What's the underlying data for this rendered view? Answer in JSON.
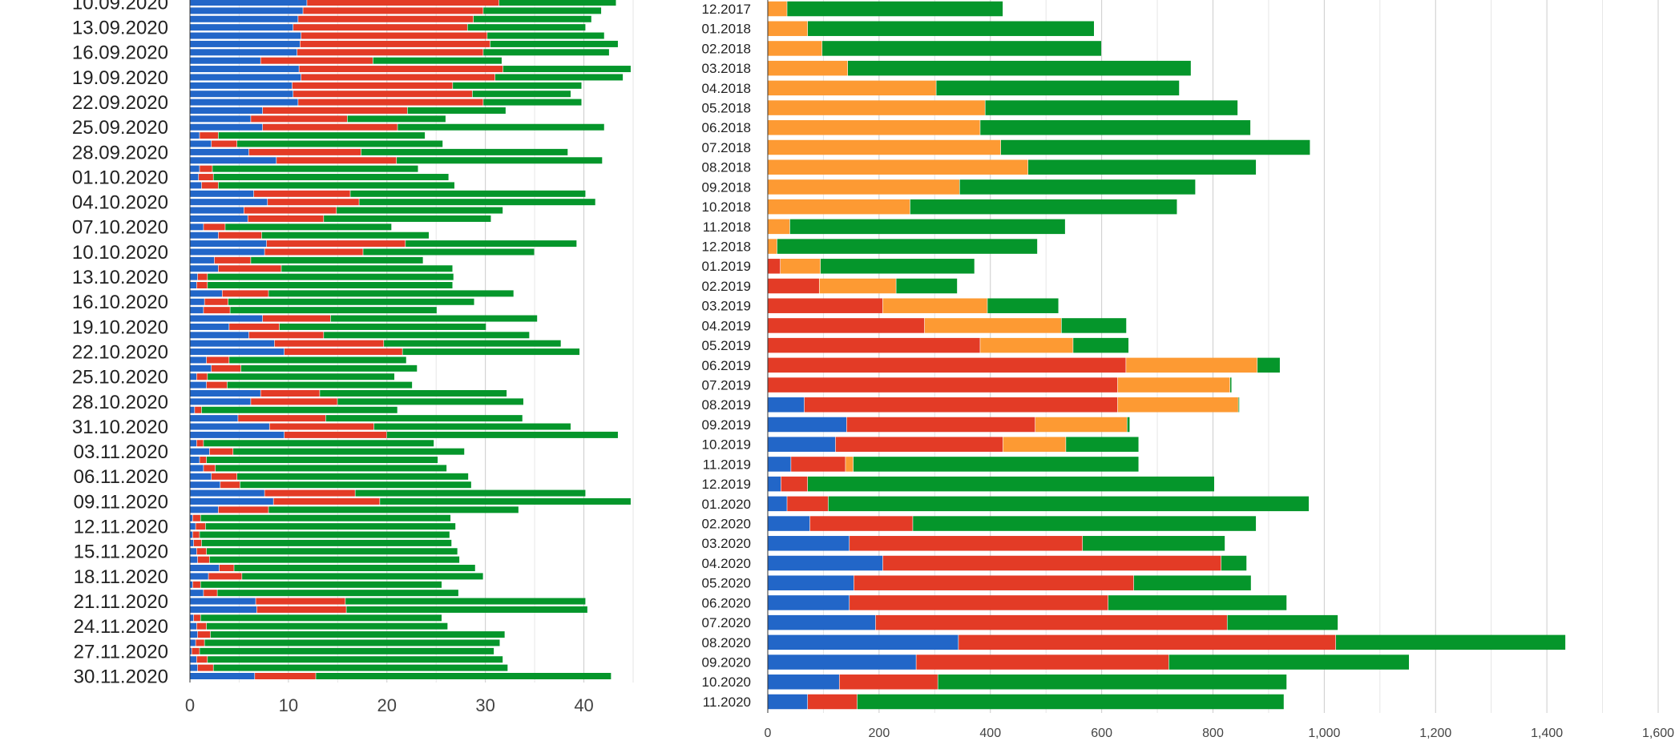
{
  "colors": {
    "blue": "#2266c8",
    "red": "#e33b26",
    "orange": "#fd9a33",
    "green": "#05962b"
  },
  "chart_data": [
    {
      "type": "bar",
      "orientation": "horizontal",
      "stacked": true,
      "title": "",
      "xlabel": "",
      "ylabel": "",
      "xlim": [
        0,
        45
      ],
      "xticks": [
        "0",
        "10",
        "20",
        "30",
        "40"
      ],
      "series_names": [
        "blue",
        "red",
        "green"
      ],
      "rows": [
        {
          "label": "10.09.2020",
          "values": [
            11.9,
            19.5,
            11.9
          ]
        },
        {
          "label": "",
          "values": [
            11.5,
            18.3,
            12.0
          ]
        },
        {
          "label": "",
          "values": [
            11.0,
            17.8,
            12.0
          ]
        },
        {
          "label": "13.09.2020",
          "values": [
            10.5,
            17.7,
            12.0
          ]
        },
        {
          "label": "",
          "values": [
            11.3,
            18.9,
            11.9
          ]
        },
        {
          "label": "",
          "values": [
            11.2,
            19.3,
            13.0
          ]
        },
        {
          "label": "16.09.2020",
          "values": [
            10.9,
            18.9,
            12.8
          ]
        },
        {
          "label": "",
          "values": [
            7.2,
            11.4,
            13.1
          ]
        },
        {
          "label": "",
          "values": [
            11.1,
            20.7,
            13.0
          ]
        },
        {
          "label": "19.09.2020",
          "values": [
            11.3,
            19.7,
            13.0
          ]
        },
        {
          "label": "",
          "values": [
            10.4,
            16.3,
            13.1
          ]
        },
        {
          "label": "",
          "values": [
            10.5,
            18.2,
            10.0
          ]
        },
        {
          "label": "22.09.2020",
          "values": [
            11.0,
            18.8,
            10.0
          ]
        },
        {
          "label": "",
          "values": [
            7.4,
            14.7,
            10.0
          ]
        },
        {
          "label": "",
          "values": [
            6.2,
            9.8,
            10.0
          ]
        },
        {
          "label": "25.09.2020",
          "values": [
            7.4,
            13.7,
            21.0
          ]
        },
        {
          "label": "",
          "values": [
            1.0,
            1.9,
            21.0
          ]
        },
        {
          "label": "",
          "values": [
            2.2,
            2.6,
            20.9
          ]
        },
        {
          "label": "28.09.2020",
          "values": [
            6.0,
            11.4,
            21.0
          ]
        },
        {
          "label": "",
          "values": [
            8.8,
            12.2,
            20.9
          ]
        },
        {
          "label": "",
          "values": [
            1.0,
            1.3,
            20.9
          ]
        },
        {
          "label": "01.10.2020",
          "values": [
            0.9,
            1.5,
            23.9
          ]
        },
        {
          "label": "",
          "values": [
            1.2,
            1.7,
            24.0
          ]
        },
        {
          "label": "",
          "values": [
            6.5,
            9.8,
            23.9
          ]
        },
        {
          "label": "04.10.2020",
          "values": [
            7.9,
            9.3,
            24.0
          ]
        },
        {
          "label": "",
          "values": [
            5.5,
            9.4,
            16.9
          ]
        },
        {
          "label": "",
          "values": [
            5.9,
            7.7,
            17.0
          ]
        },
        {
          "label": "07.10.2020",
          "values": [
            1.4,
            2.2,
            16.9
          ]
        },
        {
          "label": "",
          "values": [
            2.9,
            4.4,
            17.0
          ]
        },
        {
          "label": "",
          "values": [
            7.8,
            14.1,
            17.4
          ]
        },
        {
          "label": "10.10.2020",
          "values": [
            7.6,
            10.0,
            17.4
          ]
        },
        {
          "label": "",
          "values": [
            2.5,
            3.7,
            17.5
          ]
        },
        {
          "label": "",
          "values": [
            2.9,
            6.4,
            17.4
          ]
        },
        {
          "label": "13.10.2020",
          "values": [
            0.8,
            1.0,
            25.0
          ]
        },
        {
          "label": "",
          "values": [
            0.7,
            1.1,
            24.9
          ]
        },
        {
          "label": "",
          "values": [
            3.3,
            4.7,
            24.9
          ]
        },
        {
          "label": "16.10.2020",
          "values": [
            1.5,
            2.4,
            25.0
          ]
        },
        {
          "label": "",
          "values": [
            1.4,
            2.7,
            21.0
          ]
        },
        {
          "label": "",
          "values": [
            7.4,
            6.9,
            21.0
          ]
        },
        {
          "label": "19.10.2020",
          "values": [
            4.0,
            5.1,
            21.0
          ]
        },
        {
          "label": "",
          "values": [
            6.0,
            7.6,
            20.9
          ]
        },
        {
          "label": "",
          "values": [
            8.6,
            11.1,
            18.0
          ]
        },
        {
          "label": "22.10.2020",
          "values": [
            9.6,
            12.0,
            18.0
          ]
        },
        {
          "label": "",
          "values": [
            1.7,
            2.3,
            18.0
          ]
        },
        {
          "label": "",
          "values": [
            2.2,
            3.0,
            17.9
          ]
        },
        {
          "label": "25.10.2020",
          "values": [
            0.7,
            1.1,
            19.0
          ]
        },
        {
          "label": "",
          "values": [
            1.7,
            2.1,
            18.8
          ]
        },
        {
          "label": "",
          "values": [
            7.2,
            6.0,
            19.0
          ]
        },
        {
          "label": "28.10.2020",
          "values": [
            6.2,
            8.8,
            18.9
          ]
        },
        {
          "label": "",
          "values": [
            0.5,
            0.7,
            19.9
          ]
        },
        {
          "label": "",
          "values": [
            4.9,
            8.9,
            20.0
          ]
        },
        {
          "label": "31.10.2020",
          "values": [
            8.1,
            10.6,
            20.0
          ]
        },
        {
          "label": "",
          "values": [
            9.6,
            10.4,
            23.5
          ]
        },
        {
          "label": "",
          "values": [
            0.7,
            0.7,
            23.4
          ]
        },
        {
          "label": "03.11.2020",
          "values": [
            2.0,
            2.4,
            23.5
          ]
        },
        {
          "label": "",
          "values": [
            1.0,
            0.7,
            23.5
          ]
        },
        {
          "label": "",
          "values": [
            1.4,
            1.2,
            23.5
          ]
        },
        {
          "label": "06.11.2020",
          "values": [
            2.2,
            2.6,
            23.5
          ]
        },
        {
          "label": "",
          "values": [
            3.1,
            2.0,
            23.5
          ]
        },
        {
          "label": "",
          "values": [
            7.6,
            9.2,
            23.4
          ]
        },
        {
          "label": "09.11.2020",
          "values": [
            8.5,
            10.8,
            25.5
          ]
        },
        {
          "label": "",
          "values": [
            2.9,
            5.1,
            25.4
          ]
        },
        {
          "label": "",
          "values": [
            0.3,
            0.8,
            25.4
          ]
        },
        {
          "label": "12.11.2020",
          "values": [
            0.6,
            1.0,
            25.4
          ]
        },
        {
          "label": "",
          "values": [
            0.3,
            0.7,
            25.4
          ]
        },
        {
          "label": "",
          "values": [
            0.4,
            0.8,
            25.4
          ]
        },
        {
          "label": "15.11.2020",
          "values": [
            0.7,
            1.0,
            25.5
          ]
        },
        {
          "label": "",
          "values": [
            0.8,
            1.2,
            25.4
          ]
        },
        {
          "label": "",
          "values": [
            3.0,
            1.5,
            24.5
          ]
        },
        {
          "label": "18.11.2020",
          "values": [
            1.9,
            3.4,
            24.5
          ]
        },
        {
          "label": "",
          "values": [
            0.3,
            0.8,
            24.5
          ]
        },
        {
          "label": "",
          "values": [
            1.4,
            1.4,
            24.5
          ]
        },
        {
          "label": "21.11.2020",
          "values": [
            6.7,
            9.1,
            24.4
          ]
        },
        {
          "label": "",
          "values": [
            6.8,
            9.1,
            24.5
          ]
        },
        {
          "label": "",
          "values": [
            0.4,
            0.7,
            24.5
          ]
        },
        {
          "label": "24.11.2020",
          "values": [
            0.7,
            1.0,
            24.5
          ]
        },
        {
          "label": "",
          "values": [
            0.8,
            1.3,
            29.9
          ]
        },
        {
          "label": "",
          "values": [
            0.6,
            0.9,
            30.0
          ]
        },
        {
          "label": "27.11.2020",
          "values": [
            0.2,
            0.8,
            29.9
          ]
        },
        {
          "label": "",
          "values": [
            0.7,
            1.1,
            30.0
          ]
        },
        {
          "label": "",
          "values": [
            0.8,
            1.6,
            29.9
          ]
        },
        {
          "label": "30.11.2020",
          "values": [
            6.6,
            6.2,
            30.0
          ]
        }
      ]
    },
    {
      "type": "bar",
      "orientation": "horizontal",
      "stacked": true,
      "title": "",
      "xlabel": "",
      "ylabel": "",
      "xlim": [
        0,
        1600
      ],
      "xticks": [
        "0",
        "200",
        "400",
        "600",
        "800",
        "1,000",
        "1,200",
        "1,400",
        "1,600"
      ],
      "series_names": [
        "blue",
        "red",
        "orange",
        "green"
      ],
      "rows": [
        {
          "label": "12.2017",
          "values": [
            0,
            0,
            35,
            388
          ]
        },
        {
          "label": "01.2018",
          "values": [
            0,
            0,
            72,
            515
          ]
        },
        {
          "label": "02.2018",
          "values": [
            0,
            0,
            98,
            502
          ]
        },
        {
          "label": "03.2018",
          "values": [
            0,
            0,
            144,
            617
          ]
        },
        {
          "label": "04.2018",
          "values": [
            0,
            0,
            303,
            437
          ]
        },
        {
          "label": "05.2018",
          "values": [
            0,
            0,
            391,
            454
          ]
        },
        {
          "label": "06.2018",
          "values": [
            0,
            0,
            382,
            486
          ]
        },
        {
          "label": "07.2018",
          "values": [
            0,
            0,
            419,
            556
          ]
        },
        {
          "label": "08.2018",
          "values": [
            0,
            0,
            468,
            410
          ]
        },
        {
          "label": "09.2018",
          "values": [
            0,
            0,
            345,
            424
          ]
        },
        {
          "label": "10.2018",
          "values": [
            0,
            0,
            256,
            480
          ]
        },
        {
          "label": "11.2018",
          "values": [
            0,
            0,
            40,
            495
          ]
        },
        {
          "label": "12.2018",
          "values": [
            0,
            0,
            17,
            468
          ]
        },
        {
          "label": "01.2019",
          "values": [
            0,
            23,
            72,
            277
          ]
        },
        {
          "label": "02.2019",
          "values": [
            0,
            93,
            138,
            110
          ]
        },
        {
          "label": "03.2019",
          "values": [
            0,
            207,
            188,
            128
          ]
        },
        {
          "label": "04.2019",
          "values": [
            0,
            282,
            246,
            117
          ]
        },
        {
          "label": "05.2019",
          "values": [
            0,
            382,
            167,
            100
          ]
        },
        {
          "label": "06.2019",
          "values": [
            0,
            644,
            236,
            41
          ]
        },
        {
          "label": "07.2019",
          "values": [
            0,
            629,
            202,
            3
          ]
        },
        {
          "label": "08.2019",
          "values": [
            66,
            563,
            217,
            2
          ]
        },
        {
          "label": "09.2019",
          "values": [
            142,
            339,
            165,
            5
          ]
        },
        {
          "label": "10.2019",
          "values": [
            122,
            301,
            113,
            131
          ]
        },
        {
          "label": "11.2019",
          "values": [
            42,
            98,
            14,
            513
          ]
        },
        {
          "label": "12.2019",
          "values": [
            24,
            48,
            0,
            731
          ]
        },
        {
          "label": "01.2020",
          "values": [
            35,
            74,
            0,
            864
          ]
        },
        {
          "label": "02.2020",
          "values": [
            76,
            185,
            0,
            617
          ]
        },
        {
          "label": "03.2020",
          "values": [
            147,
            419,
            0,
            256
          ]
        },
        {
          "label": "04.2020",
          "values": [
            207,
            608,
            0,
            46
          ]
        },
        {
          "label": "05.2020",
          "values": [
            155,
            503,
            0,
            211
          ]
        },
        {
          "label": "06.2020",
          "values": [
            147,
            465,
            0,
            321
          ]
        },
        {
          "label": "07.2020",
          "values": [
            194,
            632,
            0,
            199
          ]
        },
        {
          "label": "08.2020",
          "values": [
            343,
            678,
            0,
            413
          ]
        },
        {
          "label": "09.2020",
          "values": [
            267,
            454,
            0,
            432
          ]
        },
        {
          "label": "10.2020",
          "values": [
            129,
            177,
            0,
            627
          ]
        },
        {
          "label": "11.2020",
          "values": [
            72,
            89,
            0,
            767
          ]
        }
      ]
    }
  ]
}
